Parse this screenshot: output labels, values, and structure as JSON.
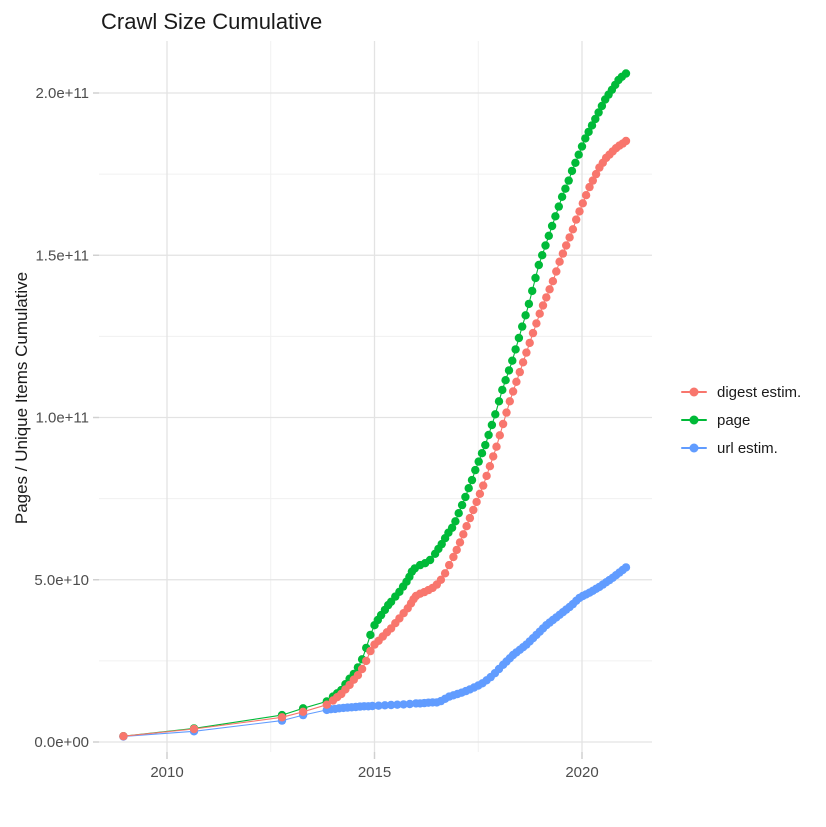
{
  "title": "Crawl Size Cumulative",
  "x_axis": {
    "tick_labels": [
      "2010",
      "2015",
      "2020"
    ],
    "tick_values": [
      2010,
      2015,
      2020
    ],
    "minor_tick_values": [
      2012.5,
      2017.5
    ]
  },
  "y_axis": {
    "label": "Pages / Unique Items Cumulative",
    "tick_labels": [
      "0.0e+00",
      "5.0e+10",
      "1.0e+11",
      "1.5e+11",
      "2.0e+11"
    ],
    "tick_values_e10": [
      0,
      5,
      10,
      15,
      20
    ],
    "minor_tick_values_e10": [
      2.5,
      7.5,
      12.5,
      17.5
    ]
  },
  "legend": {
    "items": [
      {
        "label": "digest estim.",
        "color": "#F8766D"
      },
      {
        "label": "page",
        "color": "#00BA38"
      },
      {
        "label": "url estim.",
        "color": "#619CFF"
      }
    ]
  },
  "colors": {
    "grid_major": "#e3e3e3",
    "grid_minor": "#f0f0f0",
    "axis_tick": "#d0d0d0",
    "tick_text": "#4d4d4d"
  },
  "chart_data": {
    "type": "scatter",
    "title": "Crawl Size Cumulative",
    "xlabel": "",
    "ylabel": "Pages / Unique Items Cumulative",
    "xlim": [
      2008.35,
      2021.67
    ],
    "ylim": [
      -8500000000.0,
      216000000000.0
    ],
    "y_unit_multiplier": 10000000000.0,
    "grid": true,
    "legend_position": "right",
    "marker_style": "point-with-line",
    "series": [
      {
        "name": "digest estim.",
        "color": "#F8766D",
        "points_year_value_e10": [
          [
            2008.95,
            0.18
          ],
          [
            2010.65,
            0.4
          ],
          [
            2012.77,
            0.76
          ],
          [
            2013.28,
            0.93
          ],
          [
            2013.85,
            1.15
          ],
          [
            2014.0,
            1.28
          ],
          [
            2014.1,
            1.38
          ],
          [
            2014.2,
            1.48
          ],
          [
            2014.3,
            1.62
          ],
          [
            2014.4,
            1.76
          ],
          [
            2014.5,
            1.92
          ],
          [
            2014.6,
            2.06
          ],
          [
            2014.7,
            2.25
          ],
          [
            2014.8,
            2.5
          ],
          [
            2014.9,
            2.8
          ],
          [
            2015.0,
            3.0
          ],
          [
            2015.1,
            3.12
          ],
          [
            2015.2,
            3.25
          ],
          [
            2015.3,
            3.38
          ],
          [
            2015.4,
            3.5
          ],
          [
            2015.5,
            3.66
          ],
          [
            2015.6,
            3.81
          ],
          [
            2015.7,
            3.97
          ],
          [
            2015.8,
            4.12
          ],
          [
            2015.88,
            4.27
          ],
          [
            2015.94,
            4.4
          ],
          [
            2016.0,
            4.5
          ],
          [
            2016.1,
            4.57
          ],
          [
            2016.2,
            4.62
          ],
          [
            2016.3,
            4.68
          ],
          [
            2016.4,
            4.75
          ],
          [
            2016.5,
            4.85
          ],
          [
            2016.6,
            5.0
          ],
          [
            2016.7,
            5.2
          ],
          [
            2016.8,
            5.45
          ],
          [
            2016.9,
            5.7
          ],
          [
            2016.98,
            5.92
          ],
          [
            2017.06,
            6.15
          ],
          [
            2017.14,
            6.4
          ],
          [
            2017.22,
            6.65
          ],
          [
            2017.3,
            6.9
          ],
          [
            2017.38,
            7.15
          ],
          [
            2017.46,
            7.4
          ],
          [
            2017.54,
            7.65
          ],
          [
            2017.62,
            7.9
          ],
          [
            2017.7,
            8.2
          ],
          [
            2017.78,
            8.5
          ],
          [
            2017.86,
            8.8
          ],
          [
            2017.94,
            9.1
          ],
          [
            2018.02,
            9.45
          ],
          [
            2018.1,
            9.8
          ],
          [
            2018.18,
            10.15
          ],
          [
            2018.26,
            10.5
          ],
          [
            2018.34,
            10.8
          ],
          [
            2018.42,
            11.1
          ],
          [
            2018.5,
            11.4
          ],
          [
            2018.58,
            11.7
          ],
          [
            2018.66,
            12.0
          ],
          [
            2018.74,
            12.3
          ],
          [
            2018.82,
            12.6
          ],
          [
            2018.9,
            12.9
          ],
          [
            2018.98,
            13.2
          ],
          [
            2019.06,
            13.45
          ],
          [
            2019.14,
            13.7
          ],
          [
            2019.22,
            13.95
          ],
          [
            2019.3,
            14.2
          ],
          [
            2019.38,
            14.5
          ],
          [
            2019.46,
            14.8
          ],
          [
            2019.54,
            15.05
          ],
          [
            2019.62,
            15.3
          ],
          [
            2019.7,
            15.55
          ],
          [
            2019.78,
            15.8
          ],
          [
            2019.86,
            16.1
          ],
          [
            2019.94,
            16.35
          ],
          [
            2020.02,
            16.6
          ],
          [
            2020.1,
            16.85
          ],
          [
            2020.18,
            17.1
          ],
          [
            2020.26,
            17.3
          ],
          [
            2020.34,
            17.5
          ],
          [
            2020.42,
            17.7
          ],
          [
            2020.5,
            17.85
          ],
          [
            2020.58,
            18.0
          ],
          [
            2020.66,
            18.1
          ],
          [
            2020.74,
            18.2
          ],
          [
            2020.82,
            18.3
          ],
          [
            2020.9,
            18.38
          ],
          [
            2020.98,
            18.44
          ],
          [
            2021.06,
            18.52
          ]
        ]
      },
      {
        "name": "page",
        "color": "#00BA38",
        "points_year_value_e10": [
          [
            2008.95,
            0.18
          ],
          [
            2010.65,
            0.42
          ],
          [
            2012.77,
            0.83
          ],
          [
            2013.28,
            1.04
          ],
          [
            2013.85,
            1.25
          ],
          [
            2014.0,
            1.4
          ],
          [
            2014.1,
            1.5
          ],
          [
            2014.2,
            1.6
          ],
          [
            2014.3,
            1.78
          ],
          [
            2014.4,
            1.95
          ],
          [
            2014.5,
            2.1
          ],
          [
            2014.6,
            2.3
          ],
          [
            2014.7,
            2.55
          ],
          [
            2014.8,
            2.9
          ],
          [
            2014.9,
            3.3
          ],
          [
            2015.0,
            3.6
          ],
          [
            2015.08,
            3.76
          ],
          [
            2015.16,
            3.91
          ],
          [
            2015.25,
            4.07
          ],
          [
            2015.33,
            4.22
          ],
          [
            2015.4,
            4.32
          ],
          [
            2015.5,
            4.48
          ],
          [
            2015.6,
            4.63
          ],
          [
            2015.69,
            4.79
          ],
          [
            2015.77,
            4.94
          ],
          [
            2015.84,
            5.09
          ],
          [
            2015.9,
            5.25
          ],
          [
            2015.97,
            5.35
          ],
          [
            2016.1,
            5.45
          ],
          [
            2016.22,
            5.51
          ],
          [
            2016.34,
            5.61
          ],
          [
            2016.46,
            5.8
          ],
          [
            2016.54,
            5.95
          ],
          [
            2016.62,
            6.1
          ],
          [
            2016.7,
            6.28
          ],
          [
            2016.78,
            6.45
          ],
          [
            2016.87,
            6.6
          ],
          [
            2016.95,
            6.8
          ],
          [
            2017.03,
            7.05
          ],
          [
            2017.11,
            7.3
          ],
          [
            2017.19,
            7.55
          ],
          [
            2017.27,
            7.82
          ],
          [
            2017.35,
            8.07
          ],
          [
            2017.43,
            8.38
          ],
          [
            2017.51,
            8.64
          ],
          [
            2017.59,
            8.9
          ],
          [
            2017.67,
            9.15
          ],
          [
            2017.75,
            9.46
          ],
          [
            2017.83,
            9.77
          ],
          [
            2017.91,
            10.1
          ],
          [
            2018.0,
            10.5
          ],
          [
            2018.08,
            10.85
          ],
          [
            2018.16,
            11.15
          ],
          [
            2018.24,
            11.45
          ],
          [
            2018.32,
            11.75
          ],
          [
            2018.4,
            12.1
          ],
          [
            2018.48,
            12.45
          ],
          [
            2018.56,
            12.8
          ],
          [
            2018.64,
            13.15
          ],
          [
            2018.72,
            13.5
          ],
          [
            2018.8,
            13.9
          ],
          [
            2018.88,
            14.3
          ],
          [
            2018.96,
            14.7
          ],
          [
            2019.04,
            15.0
          ],
          [
            2019.12,
            15.3
          ],
          [
            2019.2,
            15.6
          ],
          [
            2019.28,
            15.9
          ],
          [
            2019.36,
            16.2
          ],
          [
            2019.44,
            16.5
          ],
          [
            2019.52,
            16.8
          ],
          [
            2019.6,
            17.05
          ],
          [
            2019.68,
            17.3
          ],
          [
            2019.76,
            17.6
          ],
          [
            2019.84,
            17.85
          ],
          [
            2019.92,
            18.1
          ],
          [
            2020.0,
            18.35
          ],
          [
            2020.08,
            18.6
          ],
          [
            2020.16,
            18.8
          ],
          [
            2020.24,
            19.0
          ],
          [
            2020.32,
            19.2
          ],
          [
            2020.4,
            19.4
          ],
          [
            2020.48,
            19.6
          ],
          [
            2020.56,
            19.8
          ],
          [
            2020.64,
            19.95
          ],
          [
            2020.72,
            20.1
          ],
          [
            2020.8,
            20.25
          ],
          [
            2020.88,
            20.4
          ],
          [
            2020.96,
            20.5
          ],
          [
            2021.06,
            20.6
          ]
        ]
      },
      {
        "name": "url estim.",
        "color": "#619CFF",
        "points_year_value_e10": [
          [
            2008.95,
            0.17
          ],
          [
            2010.65,
            0.33
          ],
          [
            2012.77,
            0.66
          ],
          [
            2013.28,
            0.83
          ],
          [
            2013.85,
            0.99
          ],
          [
            2013.95,
            1.01
          ],
          [
            2014.05,
            1.02
          ],
          [
            2014.15,
            1.04
          ],
          [
            2014.25,
            1.05
          ],
          [
            2014.35,
            1.06
          ],
          [
            2014.45,
            1.07
          ],
          [
            2014.55,
            1.08
          ],
          [
            2014.65,
            1.09
          ],
          [
            2014.75,
            1.1
          ],
          [
            2014.85,
            1.1
          ],
          [
            2014.95,
            1.11
          ],
          [
            2015.1,
            1.12
          ],
          [
            2015.25,
            1.13
          ],
          [
            2015.4,
            1.14
          ],
          [
            2015.55,
            1.15
          ],
          [
            2015.7,
            1.16
          ],
          [
            2015.85,
            1.17
          ],
          [
            2016.0,
            1.19
          ],
          [
            2016.1,
            1.19
          ],
          [
            2016.2,
            1.2
          ],
          [
            2016.3,
            1.21
          ],
          [
            2016.4,
            1.22
          ],
          [
            2016.5,
            1.22
          ],
          [
            2016.6,
            1.26
          ],
          [
            2016.7,
            1.33
          ],
          [
            2016.8,
            1.4
          ],
          [
            2016.9,
            1.44
          ],
          [
            2017.0,
            1.48
          ],
          [
            2017.1,
            1.52
          ],
          [
            2017.2,
            1.57
          ],
          [
            2017.3,
            1.62
          ],
          [
            2017.4,
            1.68
          ],
          [
            2017.5,
            1.74
          ],
          [
            2017.6,
            1.81
          ],
          [
            2017.7,
            1.9
          ],
          [
            2017.8,
            2.0
          ],
          [
            2017.9,
            2.12
          ],
          [
            2018.0,
            2.25
          ],
          [
            2018.1,
            2.38
          ],
          [
            2018.18,
            2.48
          ],
          [
            2018.26,
            2.58
          ],
          [
            2018.34,
            2.68
          ],
          [
            2018.42,
            2.76
          ],
          [
            2018.5,
            2.84
          ],
          [
            2018.58,
            2.92
          ],
          [
            2018.66,
            3.0
          ],
          [
            2018.74,
            3.1
          ],
          [
            2018.82,
            3.2
          ],
          [
            2018.9,
            3.3
          ],
          [
            2018.98,
            3.4
          ],
          [
            2019.06,
            3.5
          ],
          [
            2019.14,
            3.6
          ],
          [
            2019.22,
            3.68
          ],
          [
            2019.3,
            3.76
          ],
          [
            2019.38,
            3.84
          ],
          [
            2019.46,
            3.92
          ],
          [
            2019.54,
            4.0
          ],
          [
            2019.62,
            4.08
          ],
          [
            2019.7,
            4.16
          ],
          [
            2019.78,
            4.25
          ],
          [
            2019.86,
            4.35
          ],
          [
            2019.94,
            4.44
          ],
          [
            2020.02,
            4.5
          ],
          [
            2020.1,
            4.55
          ],
          [
            2020.18,
            4.6
          ],
          [
            2020.26,
            4.66
          ],
          [
            2020.34,
            4.72
          ],
          [
            2020.42,
            4.78
          ],
          [
            2020.5,
            4.85
          ],
          [
            2020.58,
            4.92
          ],
          [
            2020.66,
            4.99
          ],
          [
            2020.74,
            5.06
          ],
          [
            2020.82,
            5.14
          ],
          [
            2020.9,
            5.22
          ],
          [
            2020.98,
            5.3
          ],
          [
            2021.06,
            5.38
          ]
        ]
      }
    ]
  }
}
